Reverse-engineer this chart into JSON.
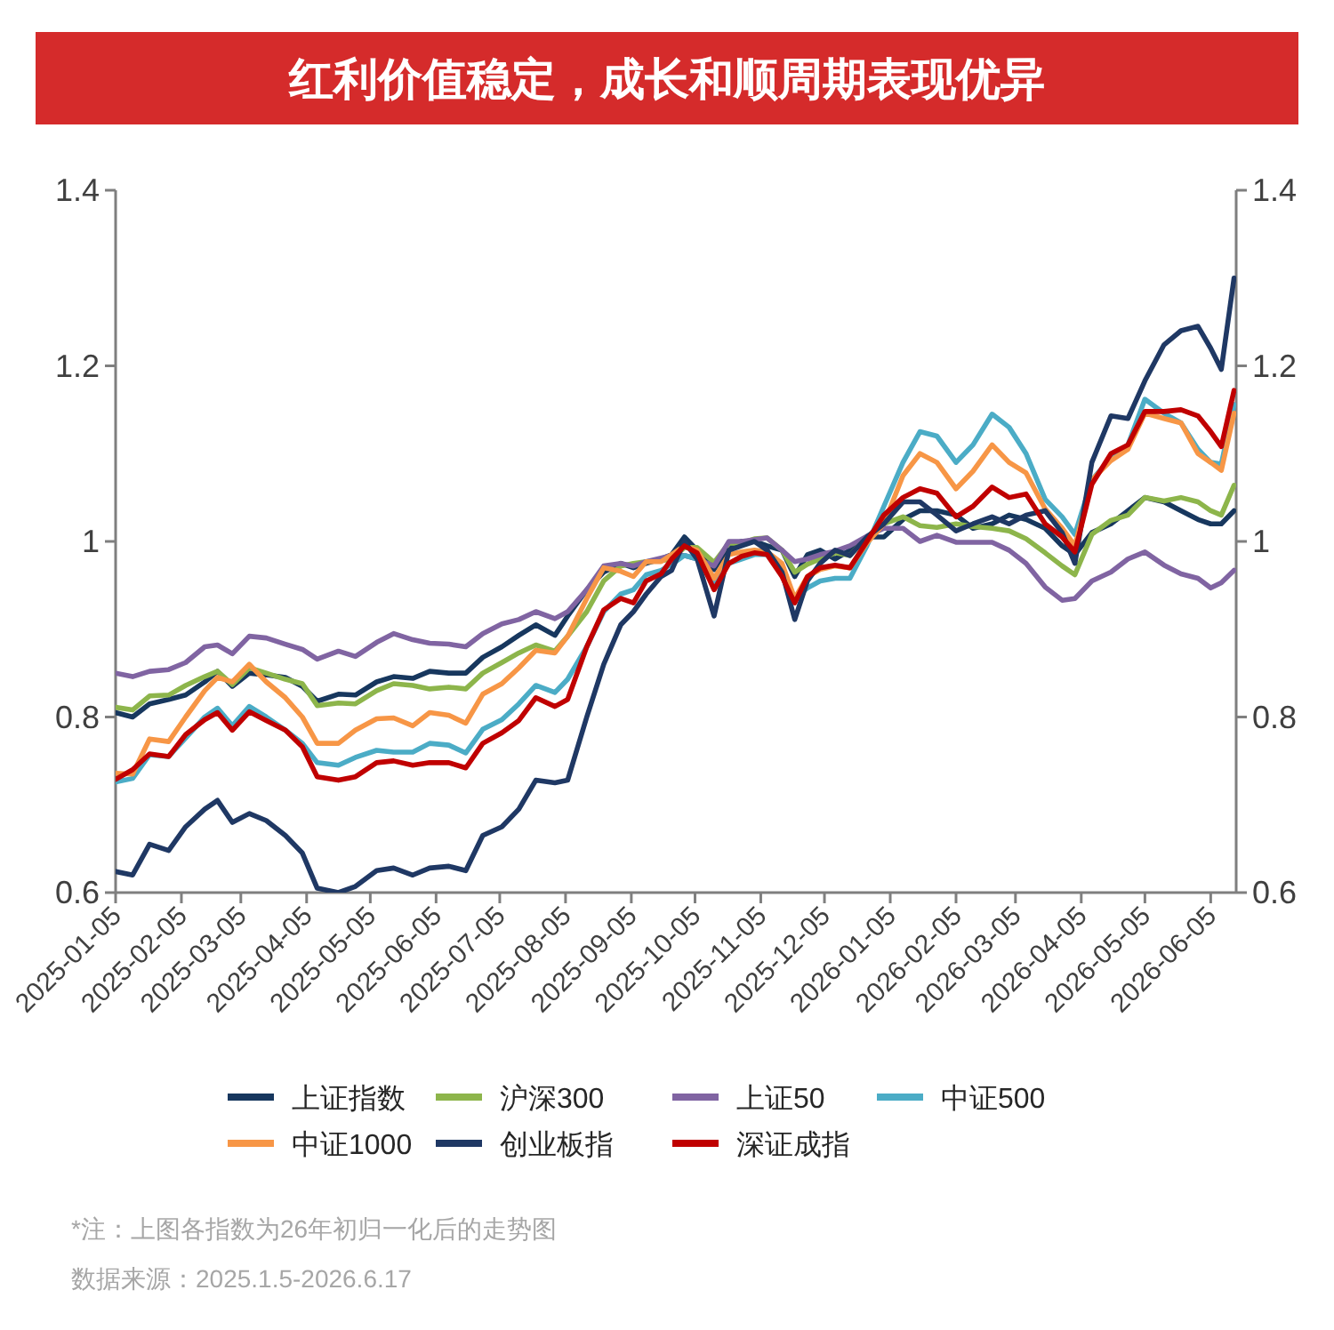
{
  "chart_data": {
    "type": "line",
    "title": "红利价值稳定，成长和顺周期表现优异",
    "annotations": [
      "*注：上图各指数为26年初归一化后的走势图",
      "数据来源：2025.1.5-2026.6.17"
    ],
    "x": [
      "2025-01-05",
      "2025-01-13",
      "2025-01-21",
      "2025-01-30",
      "2025-02-07",
      "2025-02-16",
      "2025-02-22",
      "2025-03-01",
      "2025-03-09",
      "2025-03-17",
      "2025-03-26",
      "2025-04-03",
      "2025-04-10",
      "2025-04-20",
      "2025-04-28",
      "2025-05-08",
      "2025-05-16",
      "2025-05-25",
      "2025-06-02",
      "2025-06-11",
      "2025-06-19",
      "2025-06-27",
      "2025-07-06",
      "2025-07-14",
      "2025-07-22",
      "2025-07-31",
      "2025-08-06",
      "2025-08-15",
      "2025-08-23",
      "2025-08-31",
      "2025-09-06",
      "2025-09-12",
      "2025-09-19",
      "2025-09-24",
      "2025-09-30",
      "2025-10-06",
      "2025-10-14",
      "2025-10-21",
      "2025-10-27",
      "2025-11-02",
      "2025-11-08",
      "2025-11-15",
      "2025-11-21",
      "2025-11-27",
      "2025-12-03",
      "2025-12-10",
      "2025-12-17",
      "2025-12-25",
      "2026-01-02",
      "2026-01-11",
      "2026-01-19",
      "2026-01-27",
      "2026-02-05",
      "2026-02-13",
      "2026-02-22",
      "2026-03-02",
      "2026-03-10",
      "2026-03-19",
      "2026-03-27",
      "2026-04-02",
      "2026-04-10",
      "2026-04-19",
      "2026-04-27",
      "2026-05-05",
      "2026-05-14",
      "2026-05-22",
      "2026-05-30",
      "2026-06-05",
      "2026-06-10",
      "2026-06-16"
    ],
    "xlim": [
      "2025-01-05",
      "2026-06-17"
    ],
    "xticks": [
      "2025-01-05",
      "2025-02-05",
      "2025-03-05",
      "2025-04-05",
      "2025-05-05",
      "2025-06-05",
      "2025-07-05",
      "2025-08-05",
      "2025-09-05",
      "2025-10-05",
      "2025-11-05",
      "2025-12-05",
      "2026-01-05",
      "2026-02-05",
      "2026-03-05",
      "2026-04-05",
      "2026-05-05",
      "2026-06-05"
    ],
    "ylim": [
      0.6,
      1.4
    ],
    "yticks": [
      0.6,
      0.8,
      1,
      1.2,
      1.4
    ],
    "y2lim": [
      0.6,
      1.4
    ],
    "y2ticks": [
      0.6,
      0.8,
      1,
      1.2,
      1.4
    ],
    "legend": "bottom",
    "series": [
      {
        "name": "上证指数",
        "color": "#17375e",
        "values": [
          0.805,
          0.8,
          0.815,
          0.82,
          0.825,
          0.84,
          0.852,
          0.835,
          0.85,
          0.848,
          0.845,
          0.835,
          0.818,
          0.826,
          0.825,
          0.84,
          0.846,
          0.844,
          0.852,
          0.85,
          0.85,
          0.868,
          0.88,
          0.893,
          0.905,
          0.893,
          0.915,
          0.945,
          0.965,
          0.975,
          0.97,
          0.975,
          0.98,
          0.985,
          1.005,
          0.99,
          0.968,
          0.995,
          1.0,
          1.0,
          0.995,
          0.99,
          0.96,
          0.985,
          0.99,
          0.98,
          0.99,
          1.005,
          1.005,
          1.025,
          1.035,
          1.035,
          1.03,
          1.015,
          1.02,
          1.03,
          1.025,
          1.015,
          0.995,
          0.985,
          1.01,
          1.02,
          1.035,
          1.05,
          1.045,
          1.035,
          1.025,
          1.02,
          1.02,
          1.035
        ]
      },
      {
        "name": "沪深300",
        "color": "#8db54b",
        "values": [
          0.811,
          0.808,
          0.824,
          0.825,
          0.836,
          0.846,
          0.852,
          0.837,
          0.856,
          0.85,
          0.843,
          0.838,
          0.813,
          0.816,
          0.815,
          0.83,
          0.838,
          0.836,
          0.832,
          0.834,
          0.832,
          0.85,
          0.862,
          0.873,
          0.882,
          0.875,
          0.892,
          0.92,
          0.955,
          0.972,
          0.975,
          0.977,
          0.978,
          0.98,
          0.993,
          0.993,
          0.976,
          0.998,
          0.998,
          1.003,
          1.004,
          0.99,
          0.965,
          0.974,
          0.98,
          0.987,
          0.984,
          1.005,
          1.02,
          1.028,
          1.018,
          1.016,
          1.02,
          1.017,
          1.015,
          1.012,
          1.003,
          0.987,
          0.972,
          0.962,
          1.008,
          1.024,
          1.03,
          1.05,
          1.046,
          1.05,
          1.045,
          1.035,
          1.03,
          1.064
        ]
      },
      {
        "name": "上证50",
        "color": "#8064a2",
        "values": [
          0.85,
          0.846,
          0.852,
          0.854,
          0.862,
          0.88,
          0.882,
          0.872,
          0.892,
          0.89,
          0.883,
          0.877,
          0.866,
          0.875,
          0.869,
          0.885,
          0.895,
          0.888,
          0.884,
          0.883,
          0.88,
          0.895,
          0.906,
          0.911,
          0.92,
          0.912,
          0.92,
          0.945,
          0.972,
          0.975,
          0.972,
          0.977,
          0.981,
          0.984,
          0.984,
          0.98,
          0.972,
          1.0,
          1.0,
          1.002,
          1.004,
          0.99,
          0.977,
          0.98,
          0.985,
          0.989,
          0.995,
          1.006,
          1.015,
          1.015,
          1.0,
          1.007,
          0.999,
          0.999,
          0.999,
          0.99,
          0.975,
          0.948,
          0.933,
          0.935,
          0.955,
          0.965,
          0.98,
          0.988,
          0.973,
          0.963,
          0.958,
          0.947,
          0.953,
          0.967
        ]
      },
      {
        "name": "中证500",
        "color": "#4bacc6",
        "values": [
          0.726,
          0.73,
          0.757,
          0.755,
          0.776,
          0.8,
          0.81,
          0.79,
          0.812,
          0.8,
          0.785,
          0.77,
          0.748,
          0.745,
          0.754,
          0.762,
          0.76,
          0.76,
          0.77,
          0.768,
          0.759,
          0.786,
          0.797,
          0.815,
          0.836,
          0.828,
          0.843,
          0.88,
          0.92,
          0.94,
          0.945,
          0.962,
          0.967,
          0.974,
          0.984,
          0.98,
          0.95,
          0.975,
          0.98,
          0.985,
          0.985,
          0.965,
          0.935,
          0.947,
          0.955,
          0.958,
          0.958,
          0.995,
          1.04,
          1.09,
          1.125,
          1.12,
          1.09,
          1.11,
          1.145,
          1.13,
          1.1,
          1.048,
          1.028,
          1.008,
          1.07,
          1.095,
          1.11,
          1.162,
          1.146,
          1.135,
          1.105,
          1.09,
          1.088,
          1.156
        ]
      },
      {
        "name": "中证1000",
        "color": "#f79646",
        "values": [
          0.736,
          0.735,
          0.775,
          0.772,
          0.8,
          0.83,
          0.845,
          0.84,
          0.86,
          0.84,
          0.822,
          0.8,
          0.77,
          0.77,
          0.785,
          0.798,
          0.799,
          0.79,
          0.805,
          0.802,
          0.793,
          0.826,
          0.838,
          0.856,
          0.876,
          0.873,
          0.892,
          0.935,
          0.97,
          0.966,
          0.96,
          0.977,
          0.977,
          0.985,
          0.995,
          0.99,
          0.958,
          0.985,
          0.988,
          0.99,
          0.988,
          0.975,
          0.935,
          0.96,
          0.968,
          0.972,
          0.97,
          0.998,
          1.02,
          1.075,
          1.1,
          1.09,
          1.06,
          1.08,
          1.11,
          1.09,
          1.078,
          1.037,
          1.015,
          0.995,
          1.07,
          1.092,
          1.105,
          1.146,
          1.14,
          1.135,
          1.1,
          1.09,
          1.081,
          1.146
        ]
      },
      {
        "name": "创业板指",
        "color": "#1f3864",
        "values": [
          0.624,
          0.62,
          0.655,
          0.648,
          0.675,
          0.695,
          0.705,
          0.68,
          0.69,
          0.682,
          0.665,
          0.645,
          0.605,
          0.6,
          0.607,
          0.625,
          0.628,
          0.62,
          0.628,
          0.63,
          0.625,
          0.665,
          0.675,
          0.695,
          0.728,
          0.725,
          0.728,
          0.8,
          0.86,
          0.905,
          0.92,
          0.94,
          0.96,
          0.967,
          1.0,
          0.98,
          0.915,
          0.99,
          0.995,
          1.0,
          0.99,
          0.965,
          0.911,
          0.955,
          0.975,
          0.99,
          0.984,
          1.005,
          1.02,
          1.045,
          1.045,
          1.03,
          1.012,
          1.02,
          1.028,
          1.02,
          1.03,
          1.035,
          1.01,
          0.975,
          1.09,
          1.143,
          1.14,
          1.183,
          1.224,
          1.24,
          1.245,
          1.22,
          1.196,
          1.3
        ]
      },
      {
        "name": "深证成指",
        "color": "#c00000",
        "values": [
          0.729,
          0.74,
          0.758,
          0.755,
          0.78,
          0.797,
          0.805,
          0.785,
          0.806,
          0.796,
          0.785,
          0.766,
          0.732,
          0.728,
          0.732,
          0.748,
          0.75,
          0.745,
          0.748,
          0.748,
          0.742,
          0.77,
          0.782,
          0.796,
          0.822,
          0.812,
          0.82,
          0.88,
          0.922,
          0.935,
          0.93,
          0.955,
          0.963,
          0.98,
          0.995,
          0.987,
          0.945,
          0.975,
          0.983,
          0.987,
          0.985,
          0.96,
          0.93,
          0.96,
          0.97,
          0.973,
          0.97,
          1.0,
          1.03,
          1.05,
          1.06,
          1.055,
          1.028,
          1.04,
          1.062,
          1.05,
          1.054,
          1.02,
          1.005,
          0.988,
          1.065,
          1.1,
          1.11,
          1.148,
          1.148,
          1.15,
          1.143,
          1.125,
          1.108,
          1.172
        ]
      }
    ]
  }
}
